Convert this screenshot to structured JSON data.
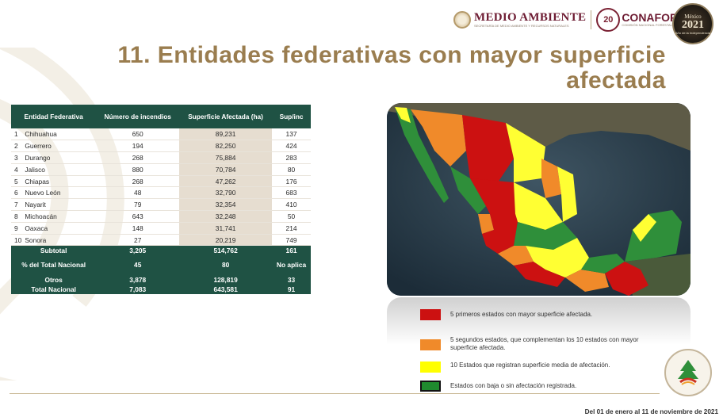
{
  "header": {
    "sema_title": "MEDIO AMBIENTE",
    "sema_sub": "SECRETARÍA DE MEDIO AMBIENTE Y RECURSOS NATURALES",
    "conafor_badge": "20",
    "conafor_title": "CONAFOR",
    "conafor_sub": "COMISIÓN NACIONAL FORESTAL",
    "mx_top": "México",
    "mx_year": "2021",
    "mx_sub": "Año de la Independencia"
  },
  "title": "11. Entidades federativas con mayor superficie afectada",
  "table": {
    "headers": [
      "Entidad Federativa",
      "Número de incendios",
      "Superficie Afectada (ha)",
      "Sup/inc"
    ],
    "rows": [
      {
        "n": "1",
        "entidad": "Chihuahua",
        "incendios": "650",
        "superficie": "89,231",
        "supinc": "137"
      },
      {
        "n": "2",
        "entidad": "Guerrero",
        "incendios": "194",
        "superficie": "82,250",
        "supinc": "424"
      },
      {
        "n": "3",
        "entidad": "Durango",
        "incendios": "268",
        "superficie": "75,884",
        "supinc": "283"
      },
      {
        "n": "4",
        "entidad": "Jalisco",
        "incendios": "880",
        "superficie": "70,784",
        "supinc": "80"
      },
      {
        "n": "5",
        "entidad": "Chiapas",
        "incendios": "268",
        "superficie": "47,262",
        "supinc": "176"
      },
      {
        "n": "6",
        "entidad": "Nuevo León",
        "incendios": "48",
        "superficie": "32,790",
        "supinc": "683"
      },
      {
        "n": "7",
        "entidad": "Nayarit",
        "incendios": "79",
        "superficie": "32,354",
        "supinc": "410"
      },
      {
        "n": "8",
        "entidad": "Michoacán",
        "incendios": "643",
        "superficie": "32,248",
        "supinc": "50"
      },
      {
        "n": "9",
        "entidad": "Oaxaca",
        "incendios": "148",
        "superficie": "31,741",
        "supinc": "214"
      },
      {
        "n": "10",
        "entidad": "Sonora",
        "incendios": "27",
        "superficie": "20,219",
        "supinc": "749"
      }
    ],
    "summary": [
      {
        "label": "Subtotal",
        "incendios": "3,205",
        "superficie": "514,762",
        "supinc": "161"
      },
      {
        "label": "% del Total Nacional",
        "incendios": "45",
        "superficie": "80",
        "supinc": "No aplica"
      },
      {
        "label": "Otros",
        "incendios": "3,878",
        "superficie": "128,819",
        "supinc": "33"
      },
      {
        "label": "Total Nacional",
        "incendios": "7,083",
        "superficie": "643,581",
        "supinc": "91"
      }
    ]
  },
  "legend": [
    {
      "color": "#cc1111",
      "text": "5 primeros estados con mayor superficie afectada."
    },
    {
      "color": "#f08a2a",
      "text": "5 segundos estados, que complementan los 10 estados con mayor superficie afectada."
    },
    {
      "color": "#ffff00",
      "text": "10 Estados que registran superficie media de afectación."
    },
    {
      "color": "#1f8a2e",
      "text": "Estados con baja o sin afectación registrada."
    }
  ],
  "footer": "Del 01 de enero al 11 de noviembre de 2021"
}
